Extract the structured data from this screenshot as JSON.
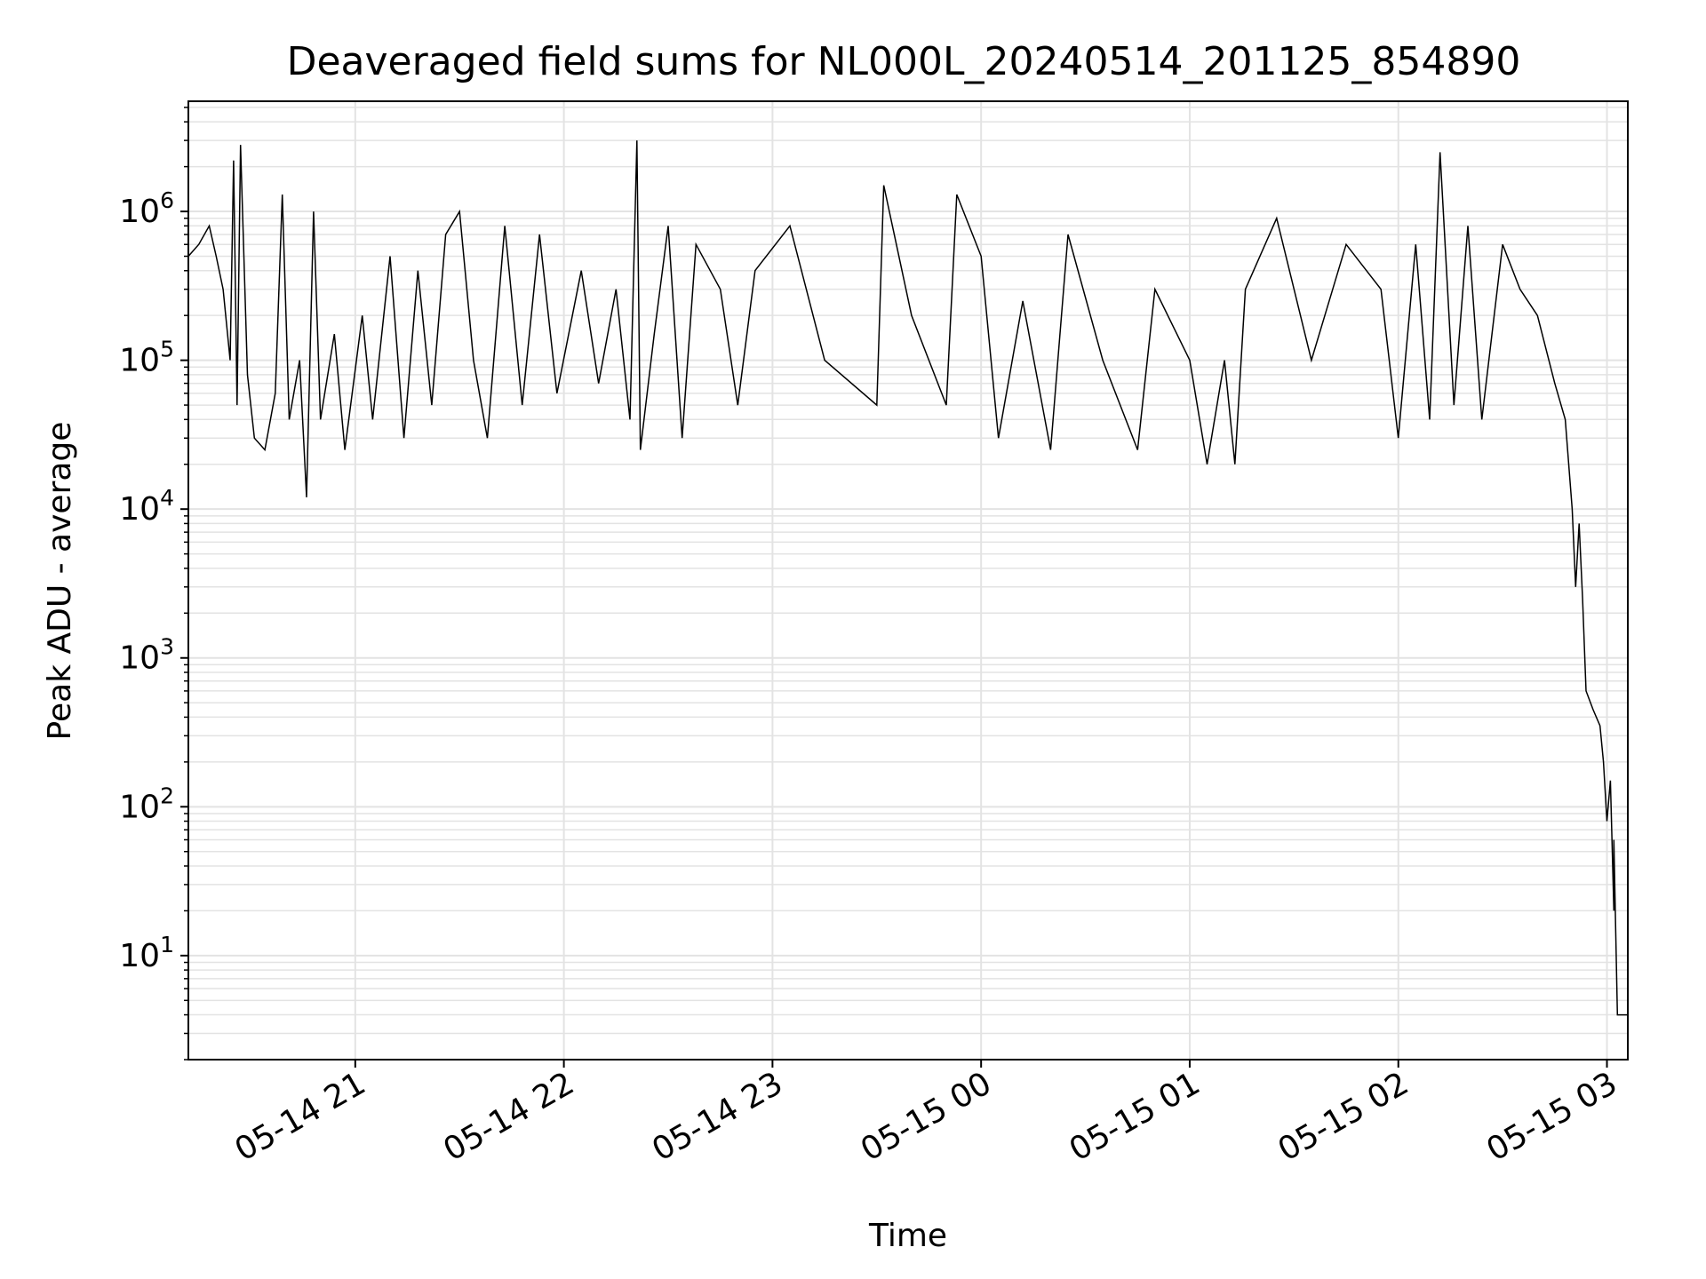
{
  "colors": {
    "background": "#ffffff",
    "line": "#000000",
    "grid": "#e3e3e3",
    "axes": "#000000"
  },
  "chart_data": {
    "type": "line",
    "title": "Deaveraged field sums for NL000L_20240514_201125_854890",
    "xlabel": "Time",
    "ylabel": "Peak ADU - average",
    "y_scale": "log",
    "ylim": [
      2,
      5500000
    ],
    "xlim": [
      "2024-05-14 20:12",
      "2024-05-15 03:06"
    ],
    "grid": "major and minor, both axes",
    "legend": "none",
    "x_ticks": [
      {
        "t": "2024-05-14 21:00",
        "label": "05-14 21"
      },
      {
        "t": "2024-05-14 22:00",
        "label": "05-14 22"
      },
      {
        "t": "2024-05-14 23:00",
        "label": "05-14 23"
      },
      {
        "t": "2024-05-15 00:00",
        "label": "05-15 00"
      },
      {
        "t": "2024-05-15 01:00",
        "label": "05-15 01"
      },
      {
        "t": "2024-05-15 02:00",
        "label": "05-15 02"
      },
      {
        "t": "2024-05-15 03:00",
        "label": "05-15 03"
      }
    ],
    "y_ticks": [
      {
        "value": 10,
        "base": "10",
        "exp": "1"
      },
      {
        "value": 100,
        "base": "10",
        "exp": "2"
      },
      {
        "value": 1000,
        "base": "10",
        "exp": "3"
      },
      {
        "value": 10000,
        "base": "10",
        "exp": "4"
      },
      {
        "value": 100000,
        "base": "10",
        "exp": "5"
      },
      {
        "value": 1000000,
        "base": "10",
        "exp": "6"
      }
    ],
    "series": [
      {
        "values": [
          [
            "2024-05-14 20:12",
            500000
          ],
          [
            "2024-05-14 20:15",
            600000
          ],
          [
            "2024-05-14 20:18",
            800000
          ],
          [
            "2024-05-14 20:20",
            500000
          ],
          [
            "2024-05-14 20:22",
            300000
          ],
          [
            "2024-05-14 20:24",
            100000
          ],
          [
            "2024-05-14 20:25",
            2200000
          ],
          [
            "2024-05-14 20:26",
            50000
          ],
          [
            "2024-05-14 20:27",
            2800000
          ],
          [
            "2024-05-14 20:29",
            80000
          ],
          [
            "2024-05-14 20:31",
            30000
          ],
          [
            "2024-05-14 20:34",
            25000
          ],
          [
            "2024-05-14 20:37",
            60000
          ],
          [
            "2024-05-14 20:39",
            1300000
          ],
          [
            "2024-05-14 20:41",
            40000
          ],
          [
            "2024-05-14 20:44",
            100000
          ],
          [
            "2024-05-14 20:46",
            12000
          ],
          [
            "2024-05-14 20:48",
            1000000
          ],
          [
            "2024-05-14 20:50",
            40000
          ],
          [
            "2024-05-14 20:54",
            150000
          ],
          [
            "2024-05-14 20:57",
            25000
          ],
          [
            "2024-05-14 21:02",
            200000
          ],
          [
            "2024-05-14 21:05",
            40000
          ],
          [
            "2024-05-14 21:10",
            500000
          ],
          [
            "2024-05-14 21:14",
            30000
          ],
          [
            "2024-05-14 21:18",
            400000
          ],
          [
            "2024-05-14 21:22",
            50000
          ],
          [
            "2024-05-14 21:26",
            700000
          ],
          [
            "2024-05-14 21:30",
            1000000
          ],
          [
            "2024-05-14 21:34",
            100000
          ],
          [
            "2024-05-14 21:38",
            30000
          ],
          [
            "2024-05-14 21:43",
            800000
          ],
          [
            "2024-05-14 21:48",
            50000
          ],
          [
            "2024-05-14 21:53",
            700000
          ],
          [
            "2024-05-14 21:58",
            60000
          ],
          [
            "2024-05-14 22:05",
            400000
          ],
          [
            "2024-05-14 22:10",
            70000
          ],
          [
            "2024-05-14 22:15",
            300000
          ],
          [
            "2024-05-14 22:19",
            40000
          ],
          [
            "2024-05-14 22:21",
            3000000
          ],
          [
            "2024-05-14 22:22",
            25000
          ],
          [
            "2024-05-14 22:26",
            150000
          ],
          [
            "2024-05-14 22:30",
            800000
          ],
          [
            "2024-05-14 22:34",
            30000
          ],
          [
            "2024-05-14 22:38",
            600000
          ],
          [
            "2024-05-14 22:45",
            300000
          ],
          [
            "2024-05-14 22:50",
            50000
          ],
          [
            "2024-05-14 22:55",
            400000
          ],
          [
            "2024-05-14 23:05",
            800000
          ],
          [
            "2024-05-14 23:15",
            100000
          ],
          [
            "2024-05-14 23:30",
            50000
          ],
          [
            "2024-05-14 23:32",
            1500000
          ],
          [
            "2024-05-14 23:40",
            200000
          ],
          [
            "2024-05-14 23:50",
            50000
          ],
          [
            "2024-05-14 23:53",
            1300000
          ],
          [
            "2024-05-15 00:00",
            500000
          ],
          [
            "2024-05-15 00:05",
            30000
          ],
          [
            "2024-05-15 00:12",
            250000
          ],
          [
            "2024-05-15 00:20",
            25000
          ],
          [
            "2024-05-15 00:25",
            700000
          ],
          [
            "2024-05-15 00:35",
            100000
          ],
          [
            "2024-05-15 00:45",
            25000
          ],
          [
            "2024-05-15 00:50",
            300000
          ],
          [
            "2024-05-15 01:00",
            100000
          ],
          [
            "2024-05-15 01:05",
            20000
          ],
          [
            "2024-05-15 01:10",
            100000
          ],
          [
            "2024-05-15 01:13",
            20000
          ],
          [
            "2024-05-15 01:16",
            300000
          ],
          [
            "2024-05-15 01:25",
            900000
          ],
          [
            "2024-05-15 01:35",
            100000
          ],
          [
            "2024-05-15 01:45",
            600000
          ],
          [
            "2024-05-15 01:55",
            300000
          ],
          [
            "2024-05-15 02:00",
            30000
          ],
          [
            "2024-05-15 02:05",
            600000
          ],
          [
            "2024-05-15 02:09",
            40000
          ],
          [
            "2024-05-15 02:12",
            2500000
          ],
          [
            "2024-05-15 02:16",
            50000
          ],
          [
            "2024-05-15 02:20",
            800000
          ],
          [
            "2024-05-15 02:24",
            40000
          ],
          [
            "2024-05-15 02:30",
            600000
          ],
          [
            "2024-05-15 02:35",
            300000
          ],
          [
            "2024-05-15 02:40",
            200000
          ],
          [
            "2024-05-15 02:45",
            70000
          ],
          [
            "2024-05-15 02:48",
            40000
          ],
          [
            "2024-05-15 02:50",
            10000
          ],
          [
            "2024-05-15 02:51",
            3000
          ],
          [
            "2024-05-15 02:52",
            8000
          ],
          [
            "2024-05-15 02:53",
            2500
          ],
          [
            "2024-05-15 02:54",
            600
          ],
          [
            "2024-05-15 02:56",
            450
          ],
          [
            "2024-05-15 02:58",
            350
          ],
          [
            "2024-05-15 02:59",
            200
          ],
          [
            "2024-05-15 03:00",
            80
          ],
          [
            "2024-05-15 03:01",
            150
          ],
          [
            "2024-05-15 03:02",
            20
          ],
          [
            "2024-05-15 03:02",
            60
          ],
          [
            "2024-05-15 03:03",
            4
          ],
          [
            "2024-05-15 03:06",
            4
          ]
        ]
      }
    ]
  }
}
